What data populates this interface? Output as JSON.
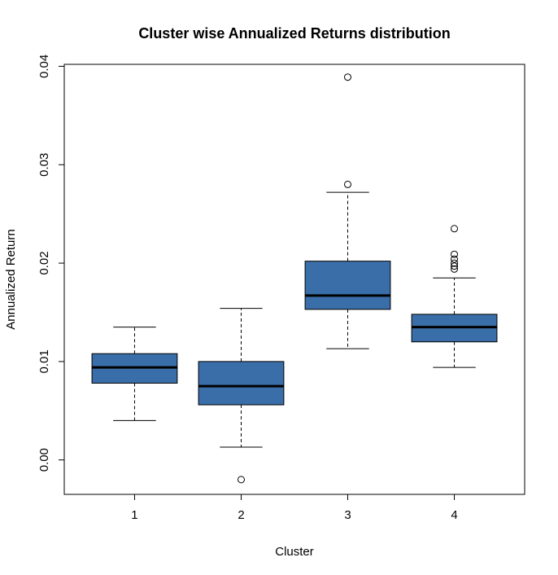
{
  "chart_data": {
    "type": "boxplot",
    "title": "Cluster wise Annualized Returns distribution",
    "xlabel": "Cluster",
    "ylabel": "Annualized Return",
    "categories": [
      "1",
      "2",
      "3",
      "4"
    ],
    "y_ticks": [
      "0.00",
      "0.01",
      "0.02",
      "0.03",
      "0.04"
    ],
    "y_tick_values": [
      0.0,
      0.01,
      0.02,
      0.03,
      0.04
    ],
    "ylim": [
      -0.0035,
      0.0402
    ],
    "grid": false,
    "legend": "none",
    "box_color": "#3a6ea8",
    "boxes": [
      {
        "category": "1",
        "whisker_low": 0.004,
        "q1": 0.0078,
        "median": 0.0094,
        "q3": 0.0108,
        "whisker_high": 0.0135,
        "outliers": []
      },
      {
        "category": "2",
        "whisker_low": 0.0013,
        "q1": 0.0056,
        "median": 0.0075,
        "q3": 0.01,
        "whisker_high": 0.0154,
        "outliers": [
          -0.002
        ]
      },
      {
        "category": "3",
        "whisker_low": 0.0113,
        "q1": 0.0153,
        "median": 0.0167,
        "q3": 0.0202,
        "whisker_high": 0.0272,
        "outliers": [
          0.028,
          0.0389
        ]
      },
      {
        "category": "4",
        "whisker_low": 0.0094,
        "q1": 0.012,
        "median": 0.0135,
        "q3": 0.0148,
        "whisker_high": 0.0185,
        "outliers": [
          0.0194,
          0.0197,
          0.02,
          0.0204,
          0.0209,
          0.0235
        ]
      }
    ]
  }
}
